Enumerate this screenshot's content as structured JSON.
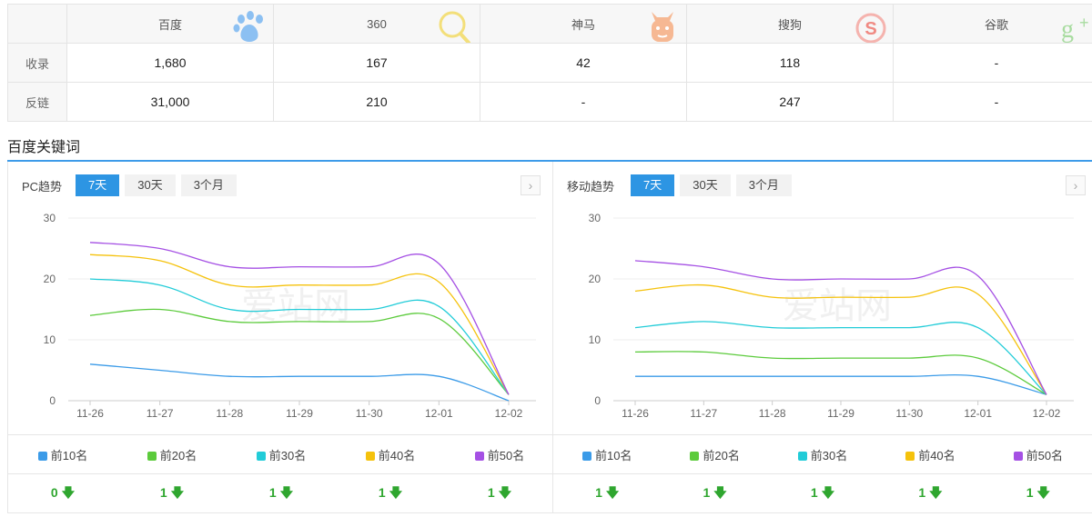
{
  "engines": {
    "headers": [
      "百度",
      "360",
      "神马",
      "搜狗",
      "谷歌"
    ],
    "rows": [
      {
        "label": "收录",
        "values": [
          "1,680",
          "167",
          "42",
          "118",
          "-"
        ]
      },
      {
        "label": "反链",
        "values": [
          "31,000",
          "210",
          "-",
          "247",
          "-"
        ]
      }
    ]
  },
  "section_title": "百度关键词",
  "legend": [
    {
      "label": "前10名",
      "color": "#3b9be8"
    },
    {
      "label": "前20名",
      "color": "#5ccb3c"
    },
    {
      "label": "前30名",
      "color": "#22ccd8"
    },
    {
      "label": "前40名",
      "color": "#f5c20c"
    },
    {
      "label": "前50名",
      "color": "#a550e4"
    }
  ],
  "tabs": [
    "7天",
    "30天",
    "3个月"
  ],
  "watermark": "爱站网",
  "pc": {
    "title": "PC趋势",
    "counts": [
      "0",
      "1",
      "1",
      "1",
      "1"
    ]
  },
  "mobile": {
    "title": "移动趋势",
    "counts": [
      "1",
      "1",
      "1",
      "1",
      "1"
    ]
  },
  "chart_data": [
    {
      "type": "line",
      "title": "PC趋势",
      "x": [
        "11-26",
        "11-27",
        "11-28",
        "11-29",
        "11-30",
        "12-01",
        "12-02"
      ],
      "ylim": [
        0,
        30
      ],
      "yticks": [
        0,
        10,
        20,
        30
      ],
      "grid": true,
      "legend_position": "bottom",
      "series": [
        {
          "name": "前10名",
          "values": [
            6,
            5,
            4,
            4,
            4,
            4,
            0
          ]
        },
        {
          "name": "前20名",
          "values": [
            14,
            15,
            13,
            13,
            13,
            13.5,
            1
          ]
        },
        {
          "name": "前30名",
          "values": [
            20,
            19,
            15,
            15,
            15,
            15.5,
            1
          ]
        },
        {
          "name": "前40名",
          "values": [
            24,
            23,
            19,
            19,
            19,
            19.5,
            1
          ]
        },
        {
          "name": "前50名",
          "values": [
            26,
            25,
            22,
            22,
            22,
            22.5,
            1
          ]
        }
      ]
    },
    {
      "type": "line",
      "title": "移动趋势",
      "x": [
        "11-26",
        "11-27",
        "11-28",
        "11-29",
        "11-30",
        "12-01",
        "12-02"
      ],
      "ylim": [
        0,
        30
      ],
      "yticks": [
        0,
        10,
        20,
        30
      ],
      "grid": true,
      "legend_position": "bottom",
      "series": [
        {
          "name": "前10名",
          "values": [
            4,
            4,
            4,
            4,
            4,
            4,
            1
          ]
        },
        {
          "name": "前20名",
          "values": [
            8,
            8,
            7,
            7,
            7,
            7,
            1
          ]
        },
        {
          "name": "前30名",
          "values": [
            12,
            13,
            12,
            12,
            12,
            12,
            1
          ]
        },
        {
          "name": "前40名",
          "values": [
            18,
            19,
            17,
            17,
            17,
            17.5,
            1
          ]
        },
        {
          "name": "前50名",
          "values": [
            23,
            22,
            20,
            20,
            20,
            20.5,
            1
          ]
        }
      ]
    }
  ]
}
